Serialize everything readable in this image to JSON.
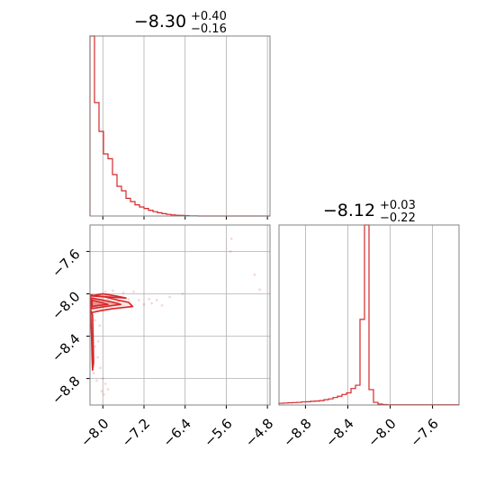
{
  "chart_data": [
    {
      "type": "histogram",
      "panel": "top-left marginal",
      "title": {
        "base": "−8.30",
        "sup": "+0.40",
        "sub": "−0.16"
      },
      "xlim": [
        -8.25,
        -4.75
      ],
      "bin_edges_start": -8.25,
      "bin_width": 0.0875,
      "counts": [
        1000,
        630,
        470,
        345,
        318,
        230,
        165,
        140,
        98,
        80,
        62,
        50,
        42,
        32,
        24,
        18,
        13,
        9,
        6,
        4,
        3,
        2,
        1,
        1,
        0,
        0,
        0,
        0,
        0,
        0,
        0,
        0,
        0,
        0,
        0,
        0,
        0,
        0,
        0,
        0
      ],
      "xticks": [
        -8.0,
        -7.2,
        -6.4,
        -5.6,
        -4.8
      ],
      "grid": true,
      "color": "#d62728"
    },
    {
      "type": "histogram",
      "panel": "bottom-right marginal",
      "title": {
        "base": "−8.12",
        "sup": "+0.03",
        "sub": "−0.22"
      },
      "xlim": [
        -9.05,
        -7.35
      ],
      "bin_edges_start": -9.05,
      "bin_width": 0.0425,
      "counts": [
        8,
        9,
        10,
        11,
        12,
        14,
        15,
        17,
        18,
        20,
        24,
        28,
        34,
        40,
        48,
        55,
        75,
        90,
        390,
        820,
        70,
        12,
        4,
        2,
        1,
        1,
        1,
        1,
        1,
        1,
        1,
        1,
        1,
        1,
        1,
        1,
        1,
        1,
        1,
        1
      ],
      "xticks": [
        -8.8,
        -8.4,
        -8.0,
        -7.6
      ],
      "tick_labels": [
        "−8.8",
        "−8.4",
        "−8.0",
        "−7.6"
      ],
      "grid": true,
      "color": "#d62728"
    },
    {
      "type": "scatter",
      "panel": "bottom-left joint",
      "xlim": [
        -8.25,
        -4.75
      ],
      "ylim": [
        -9.05,
        -7.35
      ],
      "xticks": [
        -8.0,
        -7.2,
        -6.4,
        -5.6,
        -4.8
      ],
      "x_tick_labels": [
        "−8.0",
        "−7.2",
        "−6.4",
        "−5.6",
        "−4.8"
      ],
      "yticks": [
        -7.6,
        -8.0,
        -8.4,
        -8.8
      ],
      "y_tick_labels": [
        "−7.6",
        "−8.0",
        "−8.4",
        "−8.8"
      ],
      "grid": true,
      "color": "#d62728",
      "points": [
        [
          -5.5,
          -7.48
        ],
        [
          -5.52,
          -7.6
        ],
        [
          -5.05,
          -7.82
        ],
        [
          -4.95,
          -7.96
        ],
        [
          -6.45,
          -8.0
        ],
        [
          -6.7,
          -8.03
        ],
        [
          -6.95,
          -8.06
        ],
        [
          -7.1,
          -8.05
        ],
        [
          -7.3,
          -8.06
        ],
        [
          -7.5,
          -8.05
        ],
        [
          -7.7,
          -8.07
        ],
        [
          -7.9,
          -8.06
        ],
        [
          -7.4,
          -7.98
        ],
        [
          -7.6,
          -7.99
        ],
        [
          -7.8,
          -7.97
        ],
        [
          -7.95,
          -7.98
        ],
        [
          -7.2,
          -8.1
        ],
        [
          -7.05,
          -8.09
        ],
        [
          -6.85,
          -8.11
        ],
        [
          -8.15,
          -8.5
        ],
        [
          -8.1,
          -8.6
        ],
        [
          -8.05,
          -8.7
        ],
        [
          -8.0,
          -8.8
        ],
        [
          -7.95,
          -8.85
        ],
        [
          -7.9,
          -8.9
        ],
        [
          -8.18,
          -8.75
        ],
        [
          -8.12,
          -8.82
        ],
        [
          -8.2,
          -8.4
        ],
        [
          -8.06,
          -8.3
        ],
        [
          -8.02,
          -8.92
        ],
        [
          -7.98,
          -8.95
        ],
        [
          -8.16,
          -8.25
        ],
        [
          -8.09,
          -8.45
        ]
      ],
      "contours": [
        [
          [
            -8.24,
            -8.01
          ],
          [
            -7.95,
            -8.03
          ],
          [
            -7.7,
            -8.06
          ],
          [
            -7.5,
            -8.08
          ],
          [
            -7.42,
            -8.12
          ],
          [
            -7.8,
            -8.14
          ],
          [
            -8.05,
            -8.16
          ],
          [
            -8.24,
            -8.18
          ]
        ],
        [
          [
            -8.22,
            -8.04
          ],
          [
            -8.0,
            -8.06
          ],
          [
            -7.8,
            -8.08
          ],
          [
            -7.65,
            -8.1
          ],
          [
            -7.95,
            -8.12
          ],
          [
            -8.22,
            -8.14
          ]
        ],
        [
          [
            -8.21,
            -8.06
          ],
          [
            -8.05,
            -8.08
          ],
          [
            -7.9,
            -8.1
          ],
          [
            -8.1,
            -8.11
          ],
          [
            -8.21,
            -8.12
          ]
        ],
        [
          [
            -8.24,
            -8.15
          ],
          [
            -8.22,
            -8.4
          ],
          [
            -8.21,
            -8.6
          ],
          [
            -8.2,
            -8.72
          ],
          [
            -8.18,
            -8.65
          ],
          [
            -8.19,
            -8.4
          ],
          [
            -8.2,
            -8.2
          ]
        ],
        [
          [
            -8.23,
            -8.02
          ],
          [
            -8.0,
            -8.0
          ],
          [
            -7.75,
            -8.02
          ],
          [
            -7.55,
            -8.04
          ]
        ]
      ]
    }
  ]
}
